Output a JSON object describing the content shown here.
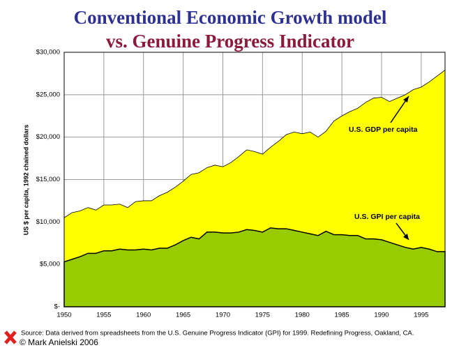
{
  "chart_data": {
    "type": "area",
    "title": "Conventional Economic Growth model",
    "subtitle": "vs. Genuine Progress Indicator",
    "y_label": "US $ per capita, 1992 chained dollars",
    "source": "Source: Data derived from spreadsheets from the U.S. Genuine Progress Indicator (GPI) for 1999. Redefining Progress, Oakland, CA.",
    "copyright": "© Mark Anielski 2006",
    "annotations": [
      "U.S. GDP per capita",
      "U.S. GPI per capita"
    ],
    "x": [
      1950,
      1951,
      1952,
      1953,
      1954,
      1955,
      1956,
      1957,
      1958,
      1959,
      1960,
      1961,
      1962,
      1963,
      1964,
      1965,
      1966,
      1967,
      1968,
      1969,
      1970,
      1971,
      1972,
      1973,
      1974,
      1975,
      1976,
      1977,
      1978,
      1979,
      1980,
      1981,
      1982,
      1983,
      1984,
      1985,
      1986,
      1987,
      1988,
      1989,
      1990,
      1991,
      1992,
      1993,
      1994,
      1995,
      1996,
      1997,
      1998
    ],
    "series": [
      {
        "name": "U.S. GDP per capita",
        "color": "#ffff00",
        "values": [
          10500,
          11100,
          11300,
          11700,
          11400,
          12000,
          12000,
          12100,
          11700,
          12400,
          12500,
          12500,
          13100,
          13500,
          14100,
          14800,
          15600,
          15800,
          16400,
          16700,
          16500,
          17000,
          17700,
          18500,
          18300,
          18000,
          18800,
          19500,
          20300,
          20600,
          20400,
          20600,
          20000,
          20700,
          21900,
          22500,
          23000,
          23400,
          24100,
          24600,
          24700,
          24200,
          24600,
          25000,
          25600,
          25900,
          26500,
          27200,
          27900
        ]
      },
      {
        "name": "U.S. GPI per capita",
        "color": "#99cc00",
        "values": [
          5300,
          5600,
          5900,
          6300,
          6300,
          6600,
          6600,
          6800,
          6700,
          6700,
          6800,
          6700,
          6900,
          6900,
          7300,
          7800,
          8200,
          8000,
          8800,
          8800,
          8700,
          8700,
          8800,
          9100,
          9000,
          8800,
          9300,
          9200,
          9200,
          9000,
          8800,
          8600,
          8400,
          8900,
          8500,
          8500,
          8400,
          8400,
          8000,
          8000,
          7900,
          7600,
          7300,
          7000,
          6800,
          7000,
          6800,
          6500,
          6500
        ]
      }
    ],
    "xlim": [
      1950,
      1998
    ],
    "xticks": [
      1950,
      1955,
      1960,
      1965,
      1970,
      1975,
      1980,
      1985,
      1990,
      1995
    ],
    "ylim": [
      0,
      30000
    ],
    "yticks": [
      {
        "value": 0,
        "label": "$-"
      },
      {
        "value": 5000,
        "label": "$5,000"
      },
      {
        "value": 10000,
        "label": "$10,000"
      },
      {
        "value": 15000,
        "label": "$15,000"
      },
      {
        "value": 20000,
        "label": "$20,000"
      },
      {
        "value": 25000,
        "label": "$25,000"
      },
      {
        "value": 30000,
        "label": "$30,000"
      }
    ],
    "grid": true
  }
}
